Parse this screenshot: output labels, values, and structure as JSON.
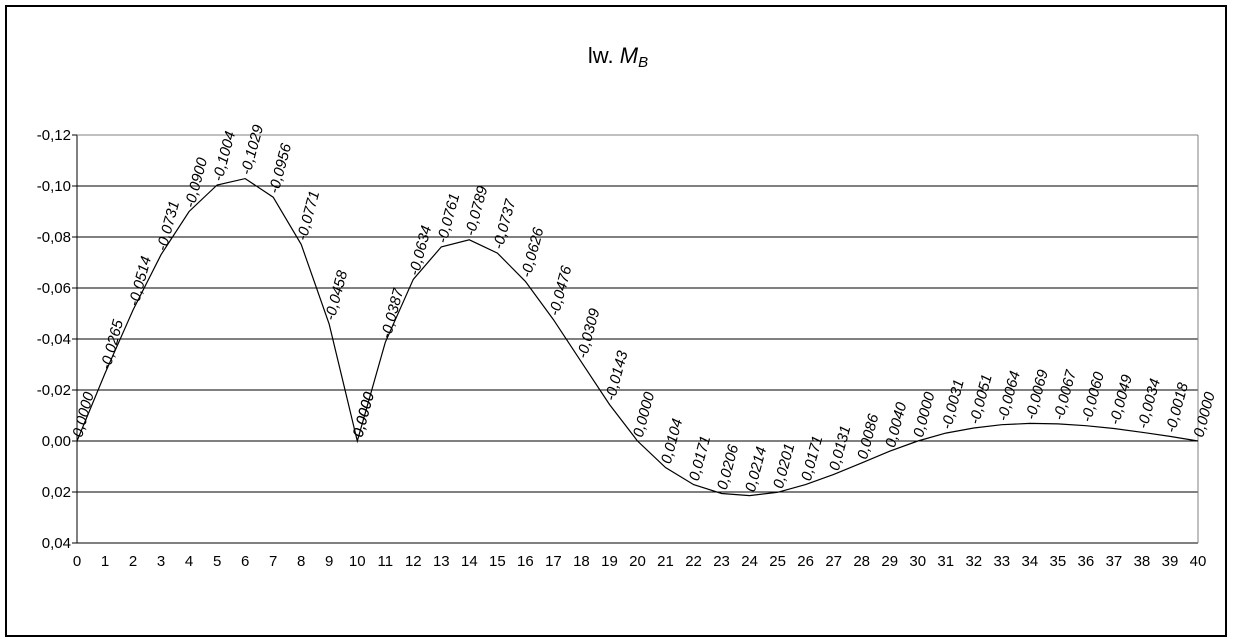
{
  "chart_data": {
    "type": "line",
    "title": {
      "prefix": "lw.",
      "symbol": "M",
      "subscript": "B"
    },
    "xlabel": "",
    "ylabel": "",
    "y_axis_inverted": true,
    "ylim": [
      -0.12,
      0.04
    ],
    "y_ticks": [
      "-0,12",
      "-0,10",
      "-0,08",
      "-0,06",
      "-0,04",
      "-0,02",
      "0,00",
      "0,02",
      "0,04"
    ],
    "x_ticks": [
      "0",
      "1",
      "2",
      "3",
      "4",
      "5",
      "6",
      "7",
      "8",
      "9",
      "10",
      "11",
      "12",
      "13",
      "14",
      "15",
      "16",
      "17",
      "18",
      "19",
      "20",
      "21",
      "22",
      "23",
      "24",
      "25",
      "26",
      "27",
      "28",
      "29",
      "30",
      "31",
      "32",
      "33",
      "34",
      "35",
      "36",
      "37",
      "38",
      "39",
      "40"
    ],
    "grid": "horizontal",
    "line_color": "#000000",
    "x": [
      0,
      1,
      2,
      3,
      4,
      5,
      6,
      7,
      8,
      9,
      10,
      10,
      11,
      12,
      13,
      14,
      15,
      16,
      17,
      18,
      19,
      20,
      21,
      22,
      23,
      24,
      25,
      26,
      27,
      28,
      29,
      30,
      31,
      32,
      33,
      34,
      35,
      36,
      37,
      38,
      39,
      40
    ],
    "values": [
      0,
      -0.0265,
      -0.0514,
      -0.0731,
      -0.09,
      -0.1004,
      -0.1029,
      -0.0956,
      -0.0771,
      -0.0458,
      0,
      0,
      -0.0387,
      -0.0634,
      -0.0761,
      -0.0789,
      -0.0737,
      -0.0626,
      -0.0476,
      -0.0309,
      -0.0143,
      0,
      0.0104,
      0.0171,
      0.0206,
      0.0214,
      0.0201,
      0.0171,
      0.0131,
      0.0086,
      0.004,
      0,
      -0.0031,
      -0.0051,
      -0.0064,
      -0.0069,
      -0.0067,
      -0.006,
      -0.0049,
      -0.0034,
      -0.0018,
      0
    ],
    "data_labels": [
      "0,0000",
      "-0,0265",
      "-0,0514",
      "-0,0731",
      "-0,0900",
      "-0,1004",
      "-0,1029",
      "-0,0956",
      "-0,0771",
      "-0,0458",
      "0,0000",
      "0,0000",
      "-0,0387",
      "-0,0634",
      "-0,0761",
      "-0,0789",
      "-0,0737",
      "-0,0626",
      "-0,0476",
      "-0,0309",
      "-0,0143",
      "0,0000",
      "0,0104",
      "0,0171",
      "0,0206",
      "0,0214",
      "0,0201",
      "0,0171",
      "0,0131",
      "0,0086",
      "0,0040",
      "0,0000",
      "-0,0031",
      "-0,0051",
      "-0,0064",
      "-0,0069",
      "-0,0067",
      "-0,0060",
      "-0,0049",
      "-0,0034",
      "-0,0018",
      "0,0000"
    ]
  }
}
